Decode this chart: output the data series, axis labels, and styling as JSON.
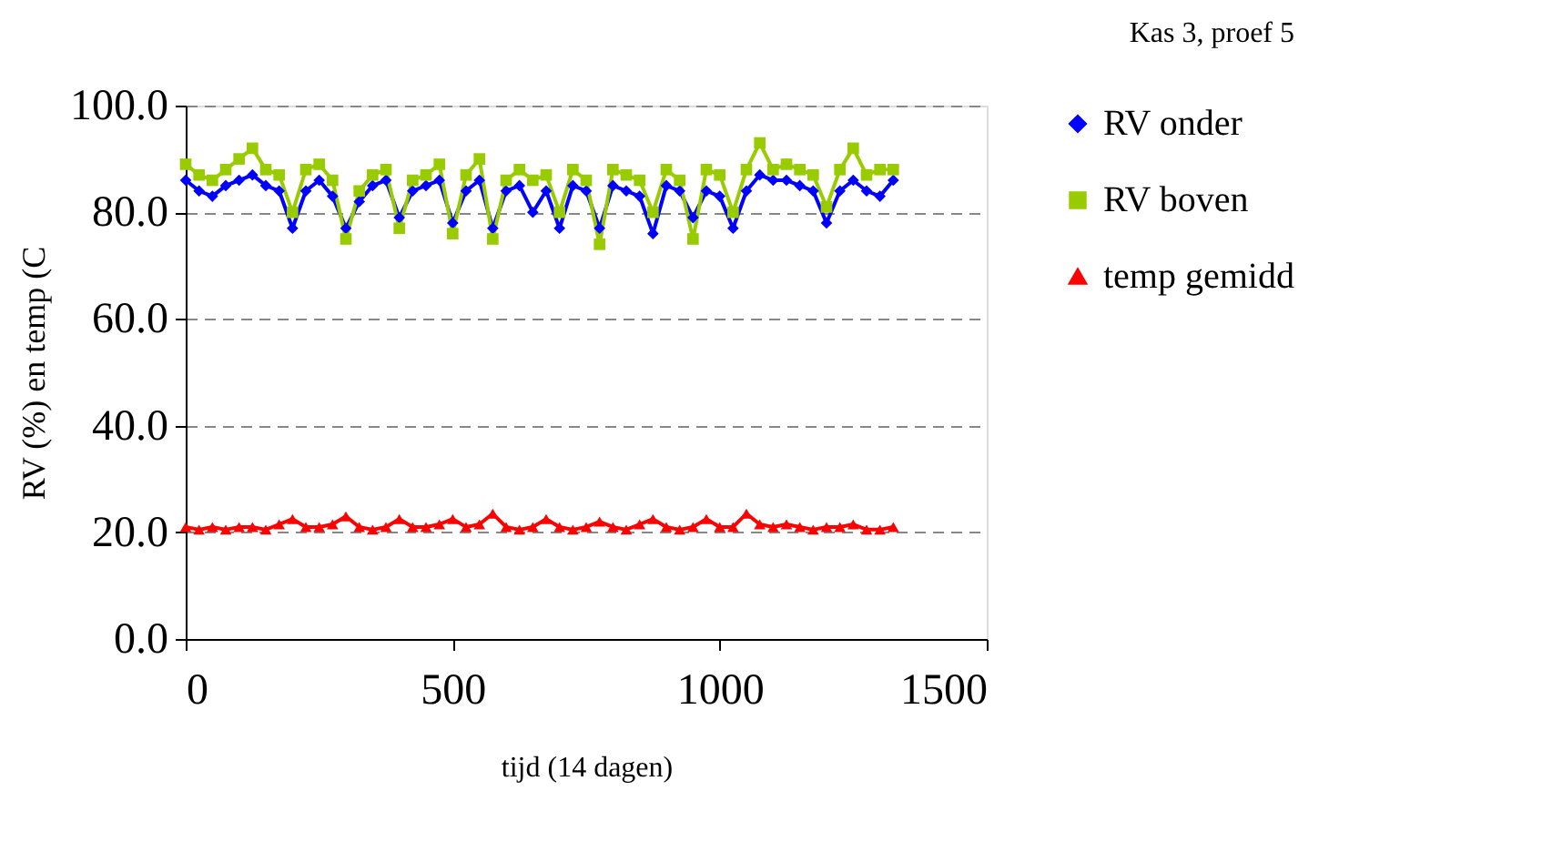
{
  "chart_data": {
    "type": "line",
    "title": "Kas 3, proef 5",
    "xlabel": "tijd (14 dagen)",
    "ylabel": "RV (%) en temp (C",
    "x": [
      0,
      25,
      50,
      75,
      100,
      125,
      150,
      175,
      200,
      225,
      250,
      275,
      300,
      325,
      350,
      375,
      400,
      425,
      450,
      475,
      500,
      525,
      550,
      575,
      600,
      625,
      650,
      675,
      700,
      725,
      750,
      775,
      800,
      825,
      850,
      875,
      900,
      925,
      950,
      975,
      1000,
      1025,
      1050,
      1075,
      1100,
      1125,
      1150,
      1175,
      1200,
      1225,
      1250,
      1275,
      1300,
      1325
    ],
    "series": [
      {
        "name": "RV onder",
        "color": "#0000ff",
        "marker": "diamond",
        "values": [
          86,
          84,
          83,
          85,
          86,
          87,
          85,
          84,
          77,
          84,
          86,
          83,
          77,
          82,
          85,
          86,
          79,
          84,
          85,
          86,
          78,
          84,
          86,
          77,
          84,
          85,
          80,
          84,
          77,
          85,
          84,
          77,
          85,
          84,
          83,
          76,
          85,
          84,
          79,
          84,
          83,
          77,
          84,
          87,
          86,
          86,
          85,
          84,
          78,
          84,
          86,
          84,
          83,
          86
        ]
      },
      {
        "name": "RV boven",
        "color": "#99cc00",
        "marker": "square",
        "values": [
          89,
          87,
          86,
          88,
          90,
          92,
          88,
          87,
          80,
          88,
          89,
          86,
          75,
          84,
          87,
          88,
          77,
          86,
          87,
          89,
          76,
          87,
          90,
          75,
          86,
          88,
          86,
          87,
          80,
          88,
          86,
          74,
          88,
          87,
          86,
          80,
          88,
          86,
          75,
          88,
          87,
          80,
          88,
          93,
          88,
          89,
          88,
          87,
          81,
          88,
          92,
          87,
          88,
          88
        ]
      },
      {
        "name": "temp gemidd",
        "color": "#ff0000",
        "marker": "triangle",
        "values": [
          21,
          20.5,
          21,
          20.5,
          21,
          21,
          20.5,
          21.5,
          22.5,
          21,
          21,
          21.5,
          23,
          21,
          20.5,
          21,
          22.5,
          21,
          21,
          21.5,
          22.5,
          21,
          21.5,
          23.5,
          21,
          20.5,
          21,
          22.5,
          21,
          20.5,
          21,
          22,
          21,
          20.5,
          21.5,
          22.5,
          21,
          20.5,
          21,
          22.5,
          21,
          21,
          23.5,
          21.5,
          21,
          21.5,
          21,
          20.5,
          21,
          21,
          21.5,
          20.5,
          20.5,
          21
        ]
      }
    ],
    "xlim": [
      0,
      1500
    ],
    "xticks": [
      0,
      500,
      {
        "value": 1000,
        "label": "1000"
      },
      {
        "value": 1500,
        "label": "1500"
      }
    ],
    "ylim": [
      0,
      100
    ],
    "yticks": [
      {
        "value": 0,
        "label": "0.0"
      },
      {
        "value": 20,
        "label": "20.0"
      },
      {
        "value": 40,
        "label": "40.0"
      },
      {
        "value": 60,
        "label": "60.0"
      },
      {
        "value": 80,
        "label": "80.0"
      },
      {
        "value": 100,
        "label": "100.0"
      }
    ],
    "grid": "y",
    "legend": "right",
    "line_style": "solid"
  }
}
